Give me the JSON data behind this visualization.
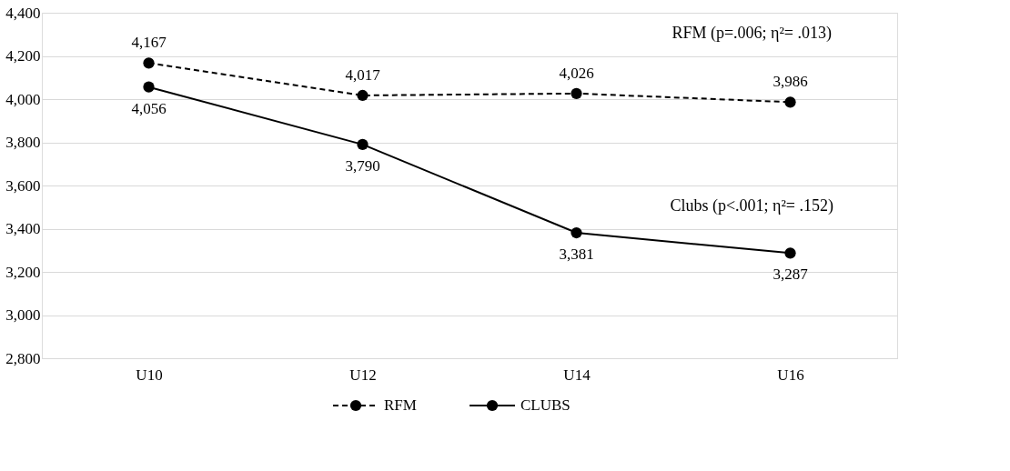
{
  "chart_data": {
    "type": "line",
    "categories": [
      "U10",
      "U12",
      "U14",
      "U16"
    ],
    "series": [
      {
        "name": "RFM",
        "color": "#000000",
        "line_style": "dashed",
        "values": [
          4167,
          4017,
          4026,
          3986
        ],
        "value_labels": [
          "4,167",
          "4,017",
          "4,026",
          "3,986"
        ]
      },
      {
        "name": "CLUBS",
        "color": "#000000",
        "line_style": "solid",
        "values": [
          4056,
          3790,
          3381,
          3287
        ],
        "value_labels": [
          "4,056",
          "3,790",
          "3,381",
          "3,287"
        ]
      }
    ],
    "ylim": [
      2800,
      4400
    ],
    "yticks": [
      {
        "value": 2800,
        "label": "2,800"
      },
      {
        "value": 3000,
        "label": "3,000"
      },
      {
        "value": 3200,
        "label": "3,200"
      },
      {
        "value": 3400,
        "label": "3,400"
      },
      {
        "value": 3600,
        "label": "3,600"
      },
      {
        "value": 3800,
        "label": "3,800"
      },
      {
        "value": 4000,
        "label": "4,000"
      },
      {
        "value": 4200,
        "label": "4,200"
      },
      {
        "value": 4400,
        "label": "4,400"
      }
    ],
    "grid": "y",
    "legend": "bottom",
    "marker": "circle",
    "annotations": [
      "RFM (p=.006; η²= .013)",
      "Clubs (p<.001; η²= .152)"
    ]
  }
}
